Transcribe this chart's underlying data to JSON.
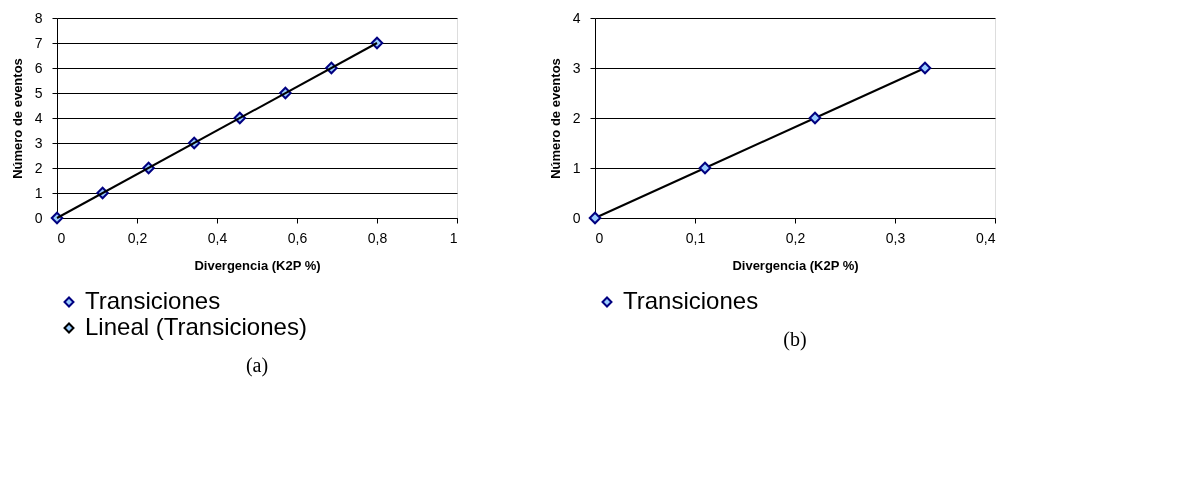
{
  "chart_data": [
    {
      "type": "scatter",
      "xlabel": "Divergencia (K2P %)",
      "ylabel": "Número de eventos",
      "xlim": [
        0,
        1
      ],
      "xticks": [
        0,
        {
          "value": 0.2,
          "label": "0,2"
        },
        {
          "value": 0.4,
          "label": "0,4"
        },
        {
          "value": 0.6,
          "label": "0,6"
        },
        {
          "value": 0.8,
          "label": "0,8"
        },
        1
      ],
      "ylim": [
        0,
        8
      ],
      "yticks": [
        0,
        1,
        2,
        3,
        4,
        5,
        6,
        7,
        8
      ],
      "grid": "y",
      "legend": "bottom",
      "marker": "diamond",
      "annotations": [
        "(a)"
      ],
      "series": [
        {
          "name": "Transiciones",
          "color": "#000080",
          "x": [
            0,
            0.114,
            0.229,
            0.343,
            0.457,
            0.571,
            0.686,
            0.8
          ],
          "values": [
            0,
            1,
            2,
            3,
            4,
            5,
            6,
            7
          ]
        },
        {
          "name": "Lineal (Transiciones)",
          "type": "line",
          "marker": "none",
          "color": "#000000",
          "x": [
            0,
            0.8
          ],
          "values": [
            0,
            7
          ]
        }
      ]
    },
    {
      "type": "scatter",
      "xlabel": "Divergencia (K2P %)",
      "ylabel": "Número de eventos",
      "xlim": [
        0,
        0.4
      ],
      "xticks": [
        0,
        {
          "value": 0.1,
          "label": "0,1"
        },
        {
          "value": 0.2,
          "label": "0,2"
        },
        {
          "value": 0.3,
          "label": "0,3"
        },
        {
          "value": 0.4,
          "label": "0,4"
        }
      ],
      "ylim": [
        0,
        4
      ],
      "yticks": [
        0,
        1,
        2,
        3,
        4
      ],
      "grid": "y",
      "legend": "bottom",
      "marker": "diamond",
      "annotations": [
        "(b)"
      ],
      "series": [
        {
          "type": "line",
          "marker": "none",
          "color": "#000000",
          "x": [
            0,
            0.11,
            0.22,
            0.33
          ],
          "values": [
            0,
            1,
            2,
            3
          ]
        },
        {
          "name": "Transiciones",
          "color": "#000080",
          "x": [
            0,
            0.11,
            0.22,
            0.33
          ],
          "values": [
            0,
            1,
            2,
            3
          ]
        }
      ]
    }
  ]
}
